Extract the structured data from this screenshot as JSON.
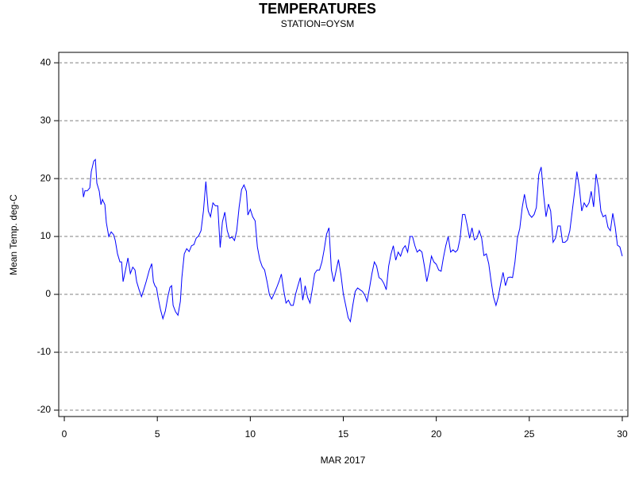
{
  "chart_data": {
    "type": "line",
    "title": "TEMPERATURES",
    "subtitle": "STATION=OYSM",
    "x_label": "MAR 2017",
    "y_label": "Mean Temp. deg-C",
    "color": "#0000ff",
    "grid": true,
    "xlim": [
      -0.3,
      30.3
    ],
    "xticks": [
      0,
      5,
      10,
      15,
      20,
      25,
      30
    ],
    "ylim": [
      -21.1,
      41.8
    ],
    "yticks": [
      -20,
      -10,
      0,
      10,
      20,
      30,
      40
    ],
    "x": [
      0.98,
      1.03,
      1.11,
      1.24,
      1.37,
      1.45,
      1.58,
      1.67,
      1.75,
      1.88,
      1.97,
      2.05,
      2.18,
      2.26,
      2.39,
      2.52,
      2.65,
      2.74,
      2.86,
      2.99,
      3.08,
      3.16,
      3.29,
      3.42,
      3.55,
      3.68,
      3.8,
      3.89,
      4.02,
      4.15,
      4.27,
      4.4,
      4.57,
      4.7,
      4.79,
      4.87,
      4.96,
      5.04,
      5.17,
      5.3,
      5.43,
      5.56,
      5.68,
      5.77,
      5.85,
      5.98,
      6.11,
      6.24,
      6.32,
      6.45,
      6.58,
      6.71,
      6.84,
      6.97,
      7.09,
      7.22,
      7.35,
      7.48,
      7.61,
      7.74,
      7.86,
      7.99,
      8.12,
      8.25,
      8.38,
      8.5,
      8.63,
      8.76,
      8.89,
      9.02,
      9.15,
      9.27,
      9.4,
      9.53,
      9.66,
      9.79,
      9.87,
      10.0,
      10.13,
      10.26,
      10.38,
      10.51,
      10.64,
      10.77,
      10.9,
      11.03,
      11.15,
      11.28,
      11.41,
      11.54,
      11.67,
      11.79,
      11.92,
      12.05,
      12.18,
      12.31,
      12.44,
      12.56,
      12.69,
      12.82,
      12.95,
      13.08,
      13.21,
      13.33,
      13.46,
      13.59,
      13.72,
      13.85,
      13.97,
      14.1,
      14.23,
      14.36,
      14.49,
      14.62,
      14.74,
      14.87,
      15.0,
      15.13,
      15.26,
      15.38,
      15.51,
      15.64,
      15.77,
      15.9,
      16.03,
      16.15,
      16.28,
      16.41,
      16.54,
      16.67,
      16.79,
      16.92,
      17.05,
      17.18,
      17.31,
      17.44,
      17.56,
      17.69,
      17.82,
      17.95,
      18.08,
      18.21,
      18.33,
      18.46,
      18.59,
      18.72,
      18.85,
      18.97,
      19.1,
      19.23,
      19.36,
      19.49,
      19.62,
      19.74,
      19.87,
      20.0,
      20.13,
      20.26,
      20.38,
      20.51,
      20.64,
      20.77,
      20.9,
      21.03,
      21.15,
      21.28,
      21.41,
      21.54,
      21.67,
      21.79,
      21.92,
      22.05,
      22.18,
      22.31,
      22.44,
      22.56,
      22.69,
      22.82,
      22.95,
      23.08,
      23.21,
      23.33,
      23.46,
      23.59,
      23.72,
      23.85,
      23.97,
      24.1,
      24.23,
      24.36,
      24.49,
      24.62,
      24.74,
      24.87,
      25.0,
      25.13,
      25.26,
      25.38,
      25.51,
      25.64,
      25.77,
      25.9,
      26.03,
      26.15,
      26.28,
      26.41,
      26.54,
      26.67,
      26.79,
      26.92,
      27.05,
      27.18,
      27.31,
      27.44,
      27.56,
      27.69,
      27.82,
      27.95,
      28.08,
      28.21,
      28.33,
      28.46,
      28.59,
      28.72,
      28.85,
      28.97,
      29.1,
      29.23,
      29.36,
      29.49,
      29.62,
      29.74,
      29.87,
      30.0
    ],
    "values": [
      18.4,
      16.8,
      17.9,
      17.9,
      18.4,
      21.2,
      23.0,
      23.3,
      19.2,
      17.8,
      15.5,
      16.4,
      15.5,
      12.4,
      10.0,
      10.8,
      10.3,
      9.3,
      7.0,
      5.6,
      5.6,
      2.2,
      4.2,
      6.3,
      3.6,
      4.7,
      4.2,
      2.2,
      0.8,
      -0.4,
      0.8,
      2.2,
      4.2,
      5.3,
      2.2,
      1.5,
      1.1,
      -0.5,
      -2.6,
      -4.2,
      -2.9,
      -0.5,
      1.2,
      1.5,
      -1.9,
      -3.0,
      -3.6,
      -1.2,
      2.9,
      7.0,
      7.9,
      7.4,
      8.4,
      8.6,
      9.7,
      10.1,
      11.0,
      14.4,
      19.5,
      14.4,
      13.4,
      15.8,
      15.3,
      15.3,
      8.1,
      12.5,
      14.2,
      11.0,
      9.7,
      9.9,
      9.3,
      11.0,
      15.1,
      18.1,
      18.9,
      17.8,
      13.7,
      14.7,
      13.4,
      12.7,
      8.2,
      6.0,
      4.8,
      4.2,
      2.2,
      -0.1,
      -0.8,
      0.1,
      1.1,
      2.2,
      3.5,
      0.8,
      -1.5,
      -1.0,
      -1.9,
      -1.9,
      0.1,
      1.5,
      2.9,
      -1.0,
      1.5,
      -0.5,
      -1.5,
      0.8,
      3.6,
      4.2,
      4.2,
      5.6,
      7.7,
      10.4,
      11.5,
      4.2,
      2.2,
      4.2,
      6.0,
      3.5,
      0.1,
      -1.9,
      -4.0,
      -4.7,
      -1.9,
      0.5,
      1.1,
      0.8,
      0.5,
      -0.1,
      -1.2,
      1.1,
      3.6,
      5.6,
      4.9,
      2.9,
      2.6,
      1.9,
      0.8,
      4.9,
      6.9,
      8.4,
      5.9,
      7.3,
      6.6,
      7.9,
      8.4,
      7.3,
      10.0,
      10.0,
      8.4,
      7.3,
      7.7,
      7.3,
      4.9,
      2.2,
      4.2,
      6.6,
      5.6,
      5.2,
      4.2,
      4.0,
      6.3,
      8.4,
      10.0,
      7.3,
      7.7,
      7.3,
      7.7,
      9.7,
      13.8,
      13.8,
      11.8,
      9.7,
      11.5,
      9.4,
      9.7,
      11.0,
      9.7,
      6.7,
      7.0,
      5.3,
      2.2,
      -0.5,
      -1.9,
      -0.5,
      1.8,
      3.8,
      1.5,
      2.9,
      3.0,
      2.9,
      5.6,
      9.7,
      11.4,
      15.0,
      17.3,
      15.0,
      13.8,
      13.3,
      13.8,
      15.0,
      20.7,
      22.0,
      17.2,
      13.4,
      15.6,
      14.4,
      9.0,
      9.7,
      11.8,
      11.8,
      9.0,
      9.0,
      9.4,
      11.0,
      14.4,
      17.8,
      21.2,
      18.5,
      14.4,
      15.8,
      15.1,
      15.8,
      17.8,
      15.1,
      20.8,
      18.5,
      14.4,
      13.4,
      13.7,
      11.6,
      11.0,
      14.0,
      11.6,
      8.5,
      8.2,
      6.6
    ]
  }
}
